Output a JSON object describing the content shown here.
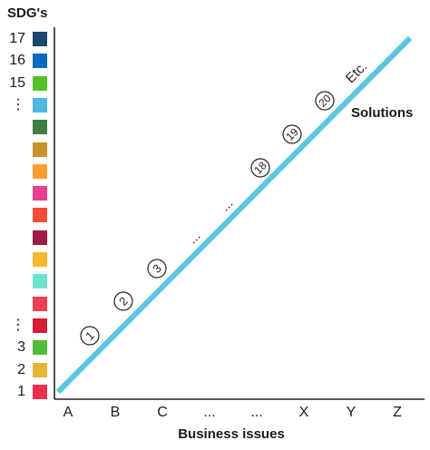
{
  "title": "SDG's",
  "line_label": "Solutions",
  "x_axis_title": "Business issues",
  "line_color": "#5bc6dd",
  "sdg_labels": [
    "17",
    "16",
    "15",
    "⋮",
    "⋮",
    "3",
    "2",
    "1"
  ],
  "sdg_colors": [
    "#19486a",
    "#0a6ac0",
    "#56c02b",
    "#4fb8e0",
    "#3f7e44",
    "#c9922b",
    "#fd9d2f",
    "#ea3f8f",
    "#f64d36",
    "#9d1d47",
    "#f8b72c",
    "#6de3d2",
    "#ef3f50",
    "#d61b34",
    "#4fbf39",
    "#e5b636",
    "#ea3150"
  ],
  "x_ticks": [
    "A",
    "B",
    "C",
    "...",
    "...",
    "X",
    "Y",
    "Z"
  ],
  "markers": [
    "1",
    "2",
    "3",
    "...",
    "...",
    "18",
    "19",
    "20",
    "Etc."
  ]
}
